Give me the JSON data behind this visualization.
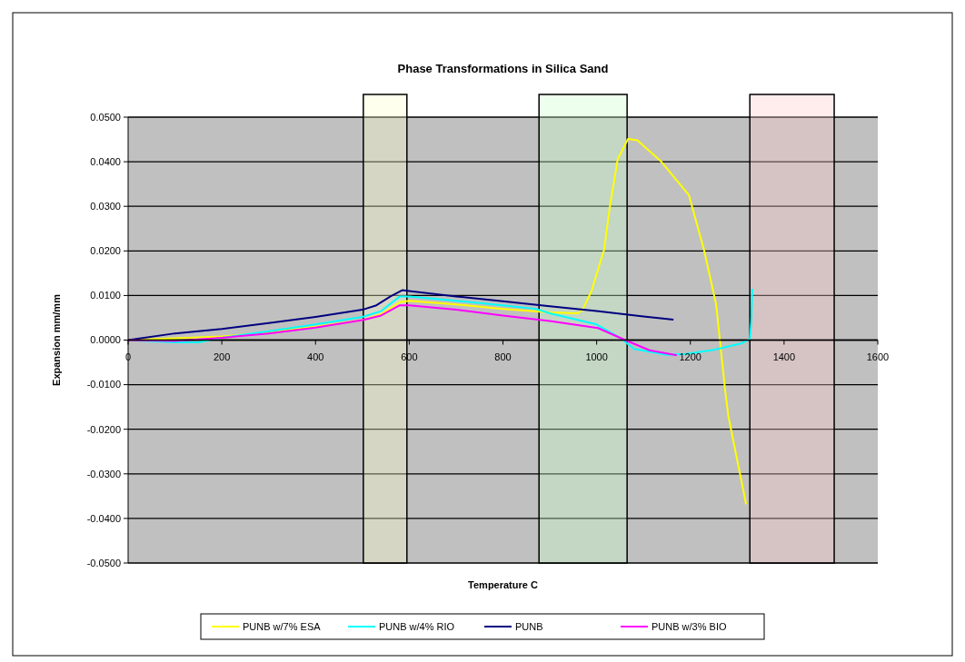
{
  "chart_data": {
    "type": "line",
    "title": "Phase Transformations in Silica Sand",
    "xlabel": "Temperature C",
    "ylabel": "Expansion mm/mm",
    "xlim": [
      0,
      1600
    ],
    "xticks": [
      0,
      200,
      400,
      600,
      800,
      1000,
      1200,
      1400,
      1600
    ],
    "ylim": [
      -0.05,
      0.05
    ],
    "yticks": [
      {
        "value": -0.05,
        "label": "-0.0500"
      },
      {
        "value": -0.04,
        "label": "-0.0400"
      },
      {
        "value": -0.03,
        "label": "-0.0300"
      },
      {
        "value": -0.02,
        "label": "-0.0200"
      },
      {
        "value": -0.01,
        "label": "-0.0100"
      },
      {
        "value": 0,
        "label": "0.0000"
      },
      {
        "value": 0.01,
        "label": "0.0100"
      },
      {
        "value": 0.02,
        "label": "0.0200"
      },
      {
        "value": 0.03,
        "label": "0.0300"
      },
      {
        "value": 0.04,
        "label": "0.0400"
      },
      {
        "value": 0.05,
        "label": "0.0500"
      }
    ],
    "grid": "y",
    "legend": "bottom",
    "marker": "none",
    "line_style": "solid",
    "bands": [
      {
        "axis": "x",
        "from": 502,
        "to": 595,
        "color": "#ffffcc"
      },
      {
        "axis": "x",
        "from": 877,
        "to": 1065,
        "color": "#ccffcc"
      },
      {
        "axis": "x",
        "from": 1327,
        "to": 1507,
        "color": "#ffcccc"
      }
    ],
    "series": [
      {
        "name": "PUNB w/7% ESA",
        "color": "#ffff00",
        "x": [
          0,
          200,
          300,
          400,
          500,
          540,
          580,
          600,
          700,
          800,
          900,
          960,
          970,
          989,
          1016,
          1028,
          1045,
          1067,
          1087,
          1138,
          1197,
          1229,
          1255,
          1274,
          1281,
          1319
        ],
        "values": [
          0,
          0.0008,
          0.0018,
          0.003,
          0.0045,
          0.0058,
          0.0085,
          0.0088,
          0.008,
          0.007,
          0.0062,
          0.006,
          0.0068,
          0.011,
          0.0203,
          0.0298,
          0.0406,
          0.0451,
          0.0448,
          0.04,
          0.0325,
          0.0203,
          0.008,
          -0.011,
          -0.017,
          -0.0368
        ]
      },
      {
        "name": "PUNB w/4% RIO",
        "color": "#00ffff",
        "x": [
          0,
          100,
          150,
          200,
          300,
          400,
          500,
          540,
          580,
          600,
          700,
          800,
          870,
          900,
          1000,
          1050,
          1080,
          1150,
          1191,
          1250,
          1310,
          1327,
          1330,
          1332
        ],
        "values": [
          0,
          -0.0005,
          -0.0005,
          0.0005,
          0.002,
          0.0035,
          0.0052,
          0.0065,
          0.0098,
          0.0098,
          0.0088,
          0.0078,
          0.007,
          0.006,
          0.0035,
          0.0005,
          -0.002,
          -0.0033,
          -0.0031,
          -0.0022,
          -0.0007,
          0.0003,
          0.004,
          0.0115
        ]
      },
      {
        "name": "PUNB",
        "color": "#000080",
        "x": [
          0,
          100,
          200,
          300,
          400,
          500,
          530,
          560,
          585,
          600,
          700,
          800,
          900,
          1000,
          1100,
          1164
        ],
        "values": [
          0,
          0.0015,
          0.0025,
          0.0038,
          0.0052,
          0.0068,
          0.0078,
          0.0098,
          0.0112,
          0.011,
          0.0098,
          0.0087,
          0.0076,
          0.0065,
          0.0053,
          0.0046
        ]
      },
      {
        "name": "PUNB w/3% BIO",
        "color": "#ff00ff",
        "x": [
          0,
          100,
          200,
          300,
          400,
          500,
          540,
          580,
          600,
          700,
          800,
          900,
          1003,
          1061,
          1113,
          1171
        ],
        "values": [
          0,
          -0.0002,
          0.0005,
          0.0015,
          0.0028,
          0.0045,
          0.0055,
          0.0078,
          0.0078,
          0.0068,
          0.0055,
          0.0043,
          0.0027,
          0,
          -0.0023,
          -0.0034
        ]
      }
    ]
  }
}
